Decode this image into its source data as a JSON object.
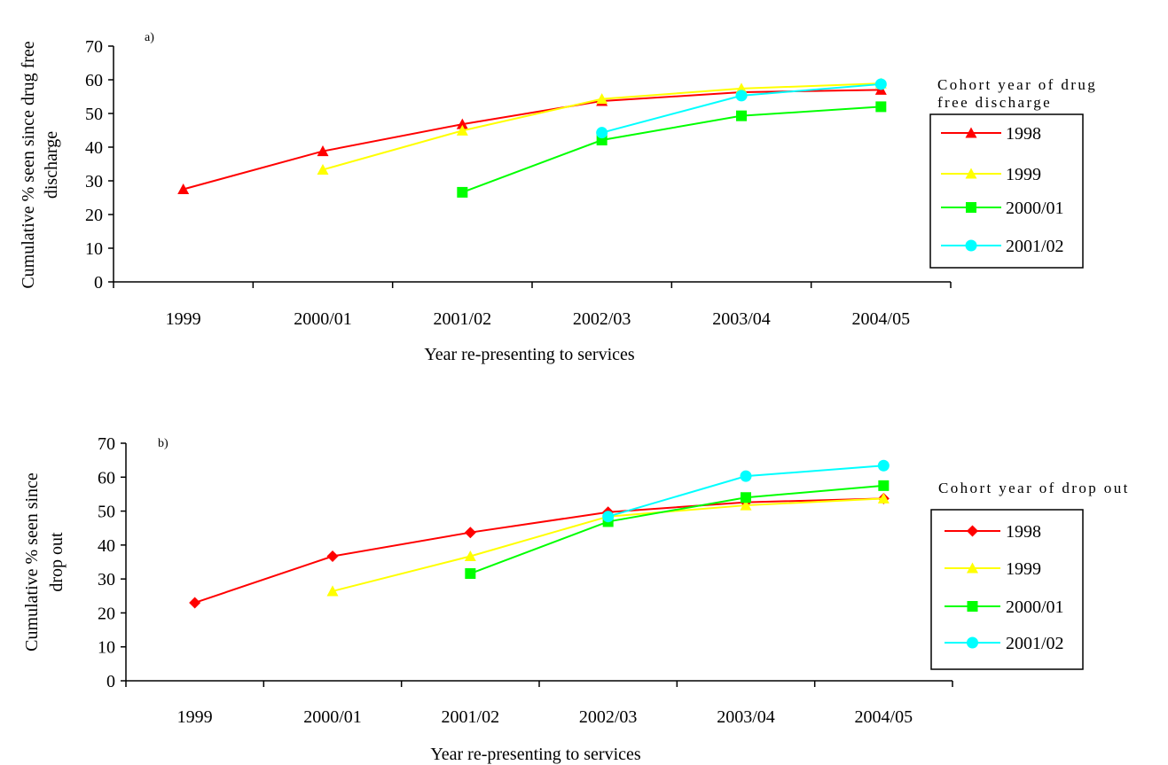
{
  "chart_data": [
    {
      "type": "line",
      "panel_label": "a)",
      "xlabel": "Year re-presenting to services",
      "ylabel_lines": [
        "Cumulative % seen since drug free",
        "discharge"
      ],
      "categories": [
        "1999",
        "2000/01",
        "2001/02",
        "2002/03",
        "2003/04",
        "2004/05"
      ],
      "ylim": [
        0,
        70
      ],
      "yticks": [
        "0",
        "10",
        "20",
        "30",
        "40",
        "50",
        "60",
        "70"
      ],
      "grid": false,
      "legend_position": "right",
      "legend_title_lines": [
        "Cohort year of drug",
        "free discharge"
      ],
      "series": [
        {
          "name": "1998",
          "color": "#ff0000",
          "marker": "triangle",
          "values": [
            27.5,
            38.8,
            46.8,
            53.7,
            56.3,
            57.0
          ]
        },
        {
          "name": "1999",
          "color": "#ffff00",
          "marker": "triangle",
          "values": [
            null,
            33.3,
            44.9,
            54.3,
            57.4,
            58.9
          ]
        },
        {
          "name": "2000/01",
          "color": "#00ff00",
          "marker": "square",
          "values": [
            null,
            null,
            26.6,
            42.1,
            49.3,
            52.0
          ]
        },
        {
          "name": "2001/02",
          "color": "#00ffff",
          "marker": "circle",
          "values": [
            null,
            null,
            null,
            44.3,
            55.3,
            58.7
          ]
        }
      ]
    },
    {
      "type": "line",
      "panel_label": "b)",
      "xlabel": "Year re-presenting to services",
      "ylabel_lines": [
        "Cumulative % seen since",
        "drop out"
      ],
      "categories": [
        "1999",
        "2000/01",
        "2001/02",
        "2002/03",
        "2003/04",
        "2004/05"
      ],
      "ylim": [
        0,
        70
      ],
      "yticks": [
        "0",
        "10",
        "20",
        "30",
        "40",
        "50",
        "60",
        "70"
      ],
      "grid": false,
      "legend_position": "right",
      "legend_title_lines": [
        "Cohort year of drop out"
      ],
      "series": [
        {
          "name": "1998",
          "color": "#ff0000",
          "marker": "diamond",
          "values": [
            23.0,
            36.7,
            43.7,
            49.7,
            52.6,
            53.7
          ]
        },
        {
          "name": "1999",
          "color": "#ffff00",
          "marker": "triangle",
          "values": [
            null,
            26.4,
            36.7,
            48.4,
            51.7,
            53.7
          ]
        },
        {
          "name": "2000/01",
          "color": "#00ff00",
          "marker": "square",
          "values": [
            null,
            null,
            31.6,
            46.9,
            54.0,
            57.5
          ]
        },
        {
          "name": "2001/02",
          "color": "#00ffff",
          "marker": "circle",
          "values": [
            null,
            null,
            null,
            48.4,
            60.3,
            63.4
          ]
        }
      ]
    }
  ]
}
